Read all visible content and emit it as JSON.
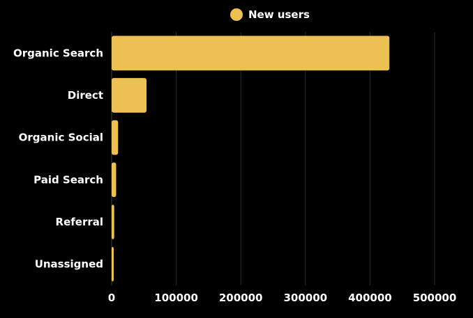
{
  "chart_data": {
    "type": "bar",
    "orientation": "horizontal",
    "categories": [
      "Organic Search",
      "Direct",
      "Organic Social",
      "Paid Search",
      "Referral",
      "Unassigned"
    ],
    "series": [
      {
        "name": "New users",
        "values": [
          430000,
          54000,
          10000,
          7000,
          4000,
          2000
        ],
        "color": "#ecc151"
      }
    ],
    "xlim": [
      0,
      500000
    ],
    "xticks": [
      "0",
      "100000",
      "200000",
      "300000",
      "400000",
      "500000"
    ],
    "grid": true,
    "legend": "top-center",
    "background": "#000000",
    "grid_color": "#2a2a2a",
    "text_color": "#ffffff"
  }
}
